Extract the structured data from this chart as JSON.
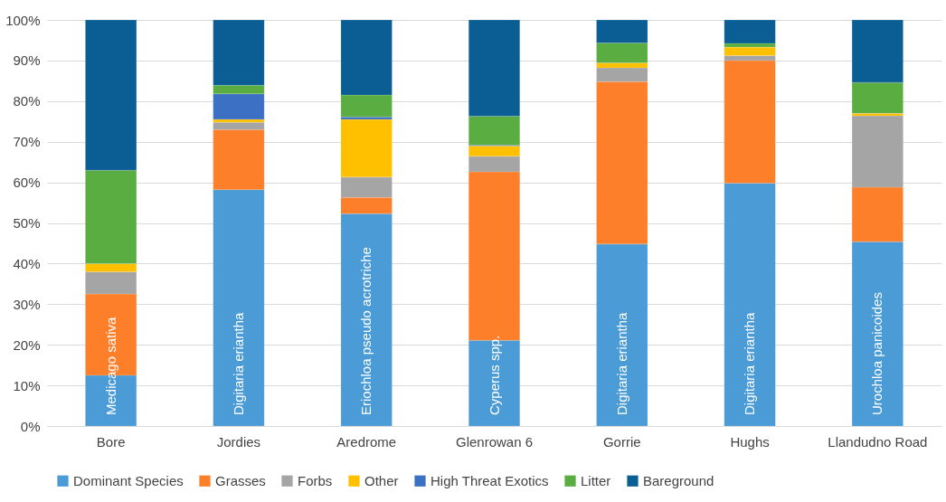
{
  "chart_data": {
    "type": "bar",
    "stacked": true,
    "categories": [
      "Bore",
      "Jordies",
      "Aredrome",
      "Glenrowan 6",
      "Gorrie",
      "Hughs",
      "Llandudno Road"
    ],
    "series": [
      {
        "name": "Dominant Species",
        "color": "#4a9bd6",
        "values": [
          12.5,
          58.2,
          52.3,
          21.1,
          44.8,
          59.8,
          45.4
        ],
        "value_labels": [
          "Medicago sativa",
          "Digitaria eriantha",
          "Eriochloa pseudo acrotriche",
          "Cyperus spp.",
          "Digitaria eriantha",
          "Digitaria eriantha",
          "Urochloa panicoides"
        ]
      },
      {
        "name": "Grasses",
        "color": "#fd7f2a",
        "values": [
          20,
          14.8,
          4.0,
          41.5,
          40,
          30.2,
          13.4
        ]
      },
      {
        "name": "Forbs",
        "color": "#a5a5a5",
        "values": [
          5.5,
          1.8,
          5.0,
          3.8,
          3.4,
          1.2,
          17.6
        ]
      },
      {
        "name": "Other",
        "color": "#ffc000",
        "values": [
          2,
          0.7,
          14.2,
          2.6,
          1.2,
          2.1,
          0.6
        ]
      },
      {
        "name": "High Threat Exotics",
        "color": "#3b70c4",
        "values": [
          0,
          6.3,
          0.6,
          0.2,
          0,
          0,
          0
        ]
      },
      {
        "name": "Litter",
        "color": "#5aad40",
        "values": [
          23,
          2.1,
          5.4,
          7.1,
          4.9,
          0.9,
          7.6
        ]
      },
      {
        "name": "Bareground",
        "color": "#0b5e94",
        "values": [
          37,
          16.1,
          18.5,
          23.7,
          5.7,
          5.8,
          15.4
        ]
      }
    ],
    "ylim": [
      0,
      100
    ],
    "yticks": [
      {
        "value": 0,
        "label": "0%"
      },
      {
        "value": 10,
        "label": "10%"
      },
      {
        "value": 20,
        "label": "20%"
      },
      {
        "value": 30,
        "label": "30%"
      },
      {
        "value": 40,
        "label": "40%"
      },
      {
        "value": 50,
        "label": "50%"
      },
      {
        "value": 60,
        "label": "60%"
      },
      {
        "value": 70,
        "label": "70%"
      },
      {
        "value": 80,
        "label": "80%"
      },
      {
        "value": 90,
        "label": "90%"
      },
      {
        "value": 100,
        "label": "100%"
      }
    ],
    "grid": "y",
    "legend": "bottom"
  }
}
